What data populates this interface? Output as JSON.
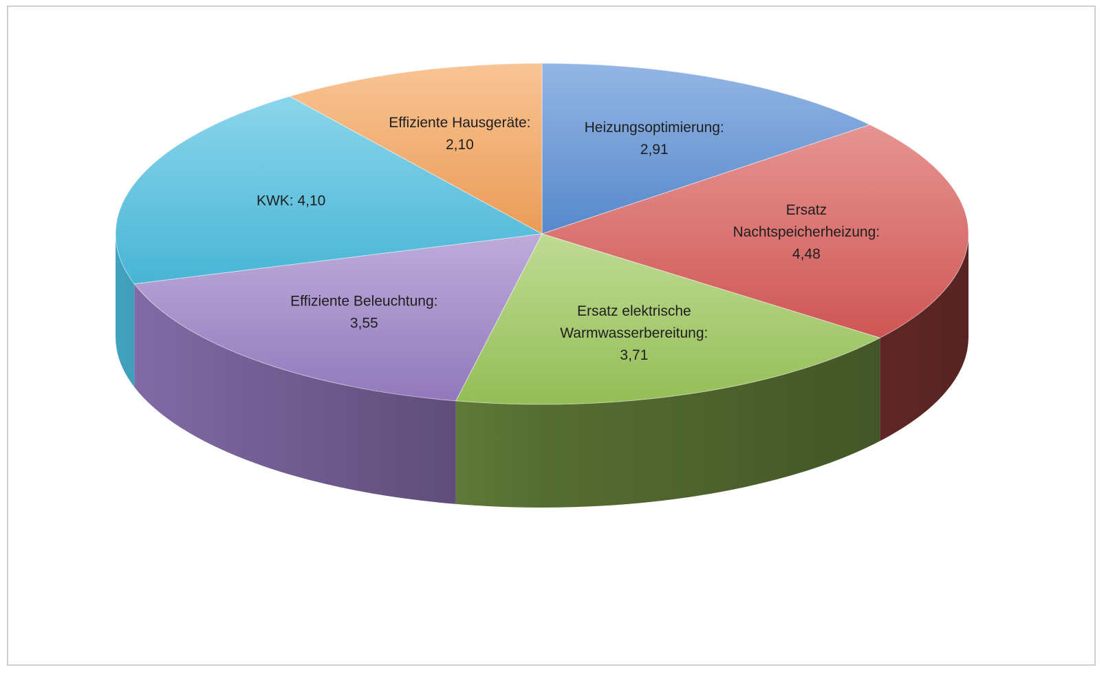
{
  "chart_data": {
    "type": "pie",
    "style": "3d",
    "title": "",
    "legend": "none",
    "colors": {
      "heizungsoptimierung": "#5b8fd6",
      "nachtspeicher": "#d95b58",
      "warmwasser": "#9cc75a",
      "beleuchtung": "#9a7fc6",
      "kwk": "#4cbfe0",
      "hausgeraete": "#f6a45c"
    },
    "slices": [
      {
        "key": "heizungsoptimierung",
        "value": 2.91,
        "label_lines": [
          "Heizungsoptimierung:",
          "2,91"
        ]
      },
      {
        "key": "nachtspeicher",
        "value": 4.48,
        "label_lines": [
          "Ersatz",
          "Nachtspeicherheizung:",
          "4,48"
        ]
      },
      {
        "key": "warmwasser",
        "value": 3.71,
        "label_lines": [
          "Ersatz elektrische",
          "Warmwasserbereitung:",
          "3,71"
        ]
      },
      {
        "key": "beleuchtung",
        "value": 3.55,
        "label_lines": [
          "Effiziente Beleuchtung:",
          "3,55"
        ]
      },
      {
        "key": "kwk",
        "value": 4.1,
        "label_lines": [
          "KWK: 4,10"
        ]
      },
      {
        "key": "hausgeraete",
        "value": 2.1,
        "label_lines": [
          "Effiziente Hausgeräte:",
          "2,10"
        ]
      }
    ]
  }
}
